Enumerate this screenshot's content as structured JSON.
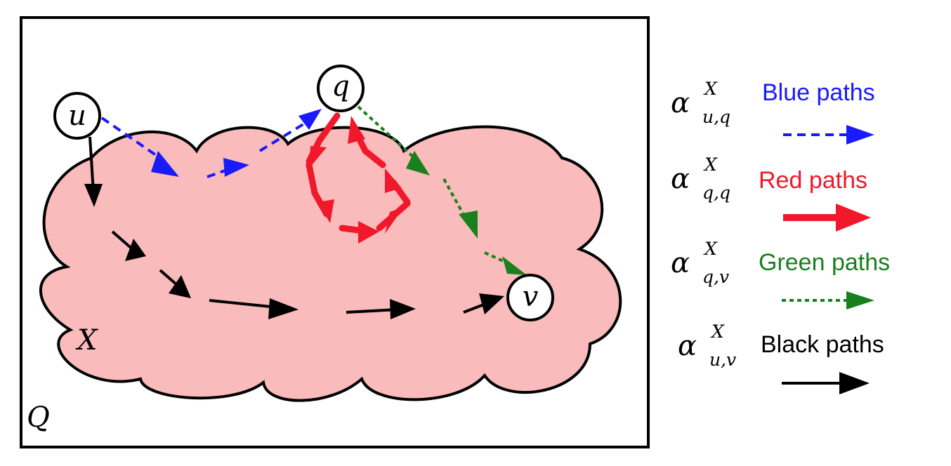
{
  "diagram": {
    "outer_set_label": "Q",
    "region_label": "X",
    "nodes": {
      "u": "u",
      "q": "q",
      "v": "v"
    }
  },
  "legend": [
    {
      "symbol": "α",
      "superscript": "X",
      "subscript": "u,q",
      "label": "Blue paths",
      "color": "#1a1aff",
      "line_style": "dashed"
    },
    {
      "symbol": "α",
      "superscript": "X",
      "subscript": "q,q",
      "label": "Red paths",
      "color": "#f0182a",
      "line_style": "thick-solid"
    },
    {
      "symbol": "α",
      "superscript": "X",
      "subscript": "q,v",
      "label": "Green paths",
      "color": "#18801c",
      "line_style": "dotted"
    },
    {
      "symbol": "α",
      "superscript": "X",
      "subscript": "u,v",
      "label": "Black paths",
      "color": "#000000",
      "line_style": "solid"
    }
  ],
  "colors": {
    "region_fill": "#f9bbbb",
    "blue": "#1a1aff",
    "red": "#f0182a",
    "green": "#18801c",
    "black": "#000000"
  }
}
